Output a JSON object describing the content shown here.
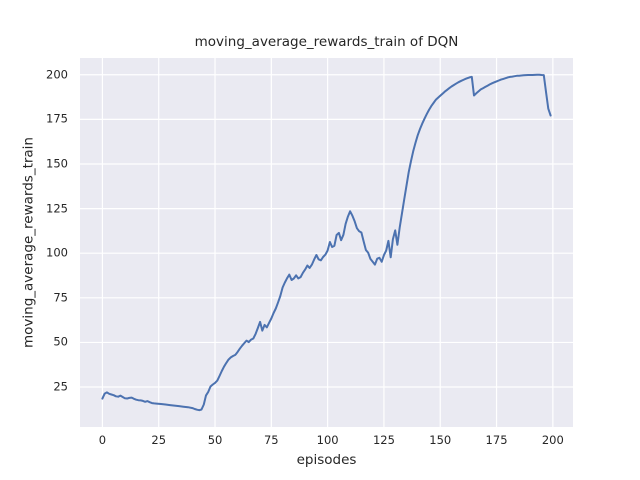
{
  "figure": {
    "title": "moving_average_rewards_train of DQN"
  },
  "chart_data": {
    "type": "line",
    "title": "moving_average_rewards_train of DQN",
    "xlabel": "episodes",
    "ylabel": "moving_average_rewards_train",
    "x_ticks": [
      0,
      25,
      50,
      75,
      100,
      125,
      150,
      175,
      200
    ],
    "y_ticks": [
      25,
      50,
      75,
      100,
      125,
      150,
      175,
      200
    ],
    "xlim": [
      -9.95,
      208.95
    ],
    "ylim": [
      2.6,
      209.4
    ],
    "grid": true,
    "legend": "none",
    "style": "seaborn-darkgrid",
    "colors": {
      "line": "#4C72B0",
      "plot_background": "#EAEAF2",
      "gridline": "#FFFFFF",
      "text": "#262626",
      "figure_background": "#FFFFFF"
    },
    "series": [
      {
        "name": "moving_average_rewards_train",
        "points": [
          [
            0,
            18.5
          ],
          [
            1,
            21.3
          ],
          [
            2,
            22.0
          ],
          [
            3,
            21.2
          ],
          [
            4,
            20.8
          ],
          [
            5,
            20.4
          ],
          [
            6,
            19.8
          ],
          [
            7,
            19.6
          ],
          [
            8,
            20.2
          ],
          [
            9,
            19.4
          ],
          [
            10,
            18.7
          ],
          [
            11,
            18.6
          ],
          [
            12,
            18.9
          ],
          [
            13,
            19.1
          ],
          [
            14,
            18.4
          ],
          [
            15,
            17.9
          ],
          [
            16,
            17.6
          ],
          [
            17,
            17.5
          ],
          [
            18,
            17.2
          ],
          [
            19,
            16.7
          ],
          [
            20,
            17.1
          ],
          [
            21,
            16.5
          ],
          [
            22,
            16.0
          ],
          [
            23,
            15.8
          ],
          [
            24,
            15.7
          ],
          [
            26,
            15.5
          ],
          [
            28,
            15.2
          ],
          [
            30,
            14.9
          ],
          [
            32,
            14.6
          ],
          [
            34,
            14.3
          ],
          [
            36,
            14.0
          ],
          [
            38,
            13.7
          ],
          [
            40,
            13.2
          ],
          [
            41,
            12.7
          ],
          [
            42,
            12.3
          ],
          [
            43,
            12.0
          ],
          [
            44,
            12.4
          ],
          [
            45,
            15.2
          ],
          [
            46,
            20.3
          ],
          [
            47,
            22.3
          ],
          [
            48,
            25.3
          ],
          [
            49,
            26.4
          ],
          [
            50,
            27.3
          ],
          [
            51,
            28.6
          ],
          [
            52,
            31.2
          ],
          [
            53,
            34.0
          ],
          [
            54,
            36.4
          ],
          [
            55,
            38.5
          ],
          [
            56,
            40.4
          ],
          [
            57,
            41.6
          ],
          [
            58,
            42.4
          ],
          [
            59,
            43.0
          ],
          [
            60,
            44.6
          ],
          [
            61,
            46.5
          ],
          [
            62,
            48.1
          ],
          [
            63,
            49.6
          ],
          [
            64,
            51.0
          ],
          [
            65,
            50.2
          ],
          [
            66,
            51.6
          ],
          [
            67,
            52.2
          ],
          [
            68,
            54.8
          ],
          [
            69,
            58.0
          ],
          [
            70,
            61.5
          ],
          [
            71,
            56.6
          ],
          [
            72,
            59.8
          ],
          [
            73,
            58.4
          ],
          [
            74,
            61.0
          ],
          [
            75,
            63.4
          ],
          [
            76,
            66.5
          ],
          [
            77,
            69.0
          ],
          [
            78,
            72.5
          ],
          [
            79,
            76.0
          ],
          [
            80,
            80.8
          ],
          [
            81,
            83.5
          ],
          [
            82,
            86.0
          ],
          [
            83,
            88.0
          ],
          [
            84,
            85.0
          ],
          [
            85,
            85.8
          ],
          [
            86,
            87.6
          ],
          [
            87,
            85.9
          ],
          [
            88,
            86.6
          ],
          [
            89,
            89.0
          ],
          [
            90,
            90.8
          ],
          [
            91,
            93.1
          ],
          [
            92,
            91.7
          ],
          [
            93,
            93.6
          ],
          [
            94,
            96.4
          ],
          [
            95,
            99.0
          ],
          [
            96,
            96.6
          ],
          [
            97,
            96.0
          ],
          [
            98,
            97.9
          ],
          [
            99,
            99.2
          ],
          [
            100,
            101.5
          ],
          [
            101,
            106.3
          ],
          [
            102,
            103.5
          ],
          [
            103,
            104.2
          ],
          [
            104,
            110.2
          ],
          [
            105,
            111.4
          ],
          [
            106,
            107.3
          ],
          [
            107,
            110.3
          ],
          [
            108,
            116.4
          ],
          [
            109,
            120.5
          ],
          [
            110,
            123.5
          ],
          [
            111,
            121.0
          ],
          [
            112,
            117.8
          ],
          [
            113,
            114.0
          ],
          [
            114,
            112.3
          ],
          [
            115,
            111.6
          ],
          [
            116,
            106.5
          ],
          [
            117,
            101.8
          ],
          [
            118,
            100.2
          ],
          [
            119,
            96.8
          ],
          [
            120,
            95.2
          ],
          [
            121,
            93.6
          ],
          [
            122,
            96.9
          ],
          [
            123,
            97.4
          ],
          [
            124,
            95.2
          ],
          [
            125,
            98.9
          ],
          [
            126,
            101.5
          ],
          [
            127,
            106.9
          ],
          [
            128,
            97.7
          ],
          [
            129,
            107.8
          ],
          [
            130,
            112.8
          ],
          [
            131,
            104.7
          ],
          [
            132,
            114.4
          ],
          [
            133,
            122.1
          ],
          [
            134,
            130.1
          ],
          [
            135,
            137.9
          ],
          [
            136,
            145.4
          ],
          [
            137,
            151.6
          ],
          [
            138,
            157.1
          ],
          [
            139,
            161.9
          ],
          [
            140,
            166.1
          ],
          [
            141,
            169.6
          ],
          [
            142,
            172.6
          ],
          [
            143,
            175.4
          ],
          [
            144,
            177.9
          ],
          [
            145,
            180.3
          ],
          [
            146,
            182.4
          ],
          [
            147,
            184.2
          ],
          [
            148,
            185.9
          ],
          [
            149,
            187.1
          ],
          [
            150,
            188.2
          ],
          [
            151,
            189.4
          ],
          [
            152,
            190.5
          ],
          [
            153,
            191.5
          ],
          [
            154,
            192.5
          ],
          [
            155,
            193.4
          ],
          [
            156,
            194.2
          ],
          [
            157,
            195.0
          ],
          [
            158,
            195.8
          ],
          [
            159,
            196.4
          ],
          [
            160,
            197.0
          ],
          [
            161,
            197.6
          ],
          [
            162,
            198.1
          ],
          [
            163,
            198.5
          ],
          [
            164,
            198.8
          ],
          [
            165,
            188.4
          ],
          [
            166,
            189.6
          ],
          [
            167,
            190.7
          ],
          [
            168,
            191.8
          ],
          [
            169,
            192.5
          ],
          [
            170,
            193.2
          ],
          [
            171,
            193.9
          ],
          [
            172,
            194.6
          ],
          [
            173,
            195.2
          ],
          [
            174,
            195.8
          ],
          [
            175,
            196.3
          ],
          [
            176,
            196.8
          ],
          [
            177,
            197.3
          ],
          [
            178,
            197.7
          ],
          [
            179,
            198.1
          ],
          [
            180,
            198.5
          ],
          [
            181,
            198.8
          ],
          [
            182,
            199.0
          ],
          [
            183,
            199.2
          ],
          [
            184,
            199.4
          ],
          [
            185,
            199.5
          ],
          [
            186,
            199.6
          ],
          [
            187,
            199.7
          ],
          [
            188,
            199.8
          ],
          [
            189,
            199.85
          ],
          [
            190,
            199.9
          ],
          [
            191,
            199.9
          ],
          [
            192,
            199.95
          ],
          [
            193,
            200.0
          ],
          [
            194,
            200.0
          ],
          [
            195,
            199.9
          ],
          [
            196,
            199.8
          ],
          [
            197,
            190.0
          ],
          [
            198,
            181.0
          ],
          [
            199,
            177.2
          ]
        ]
      }
    ]
  }
}
